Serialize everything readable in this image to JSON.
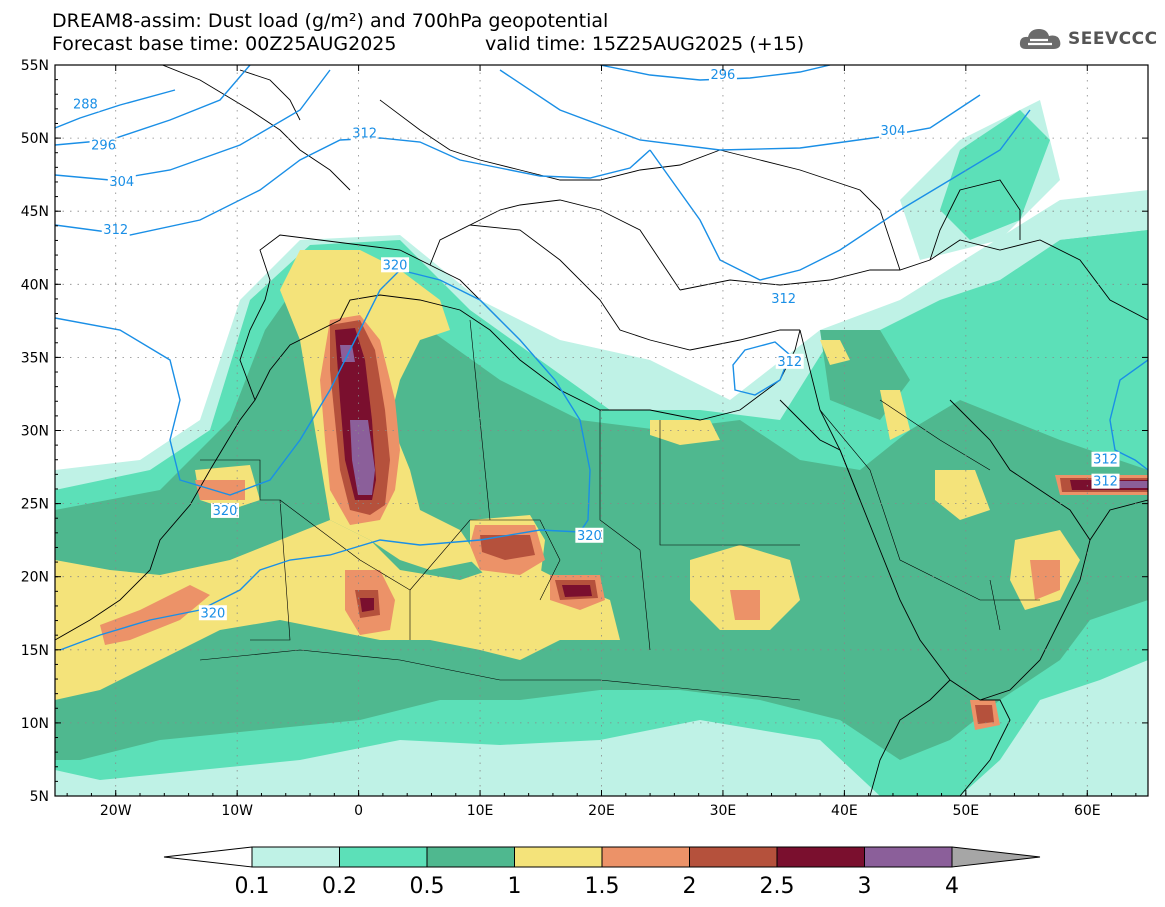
{
  "title_line1": "DREAM8-assim: Dust load (g/m²) and 700hPa geopotential",
  "title_line2": "Forecast base time: 00Z25AUG2025",
  "valid_time": "valid time: 15Z25AUG2025 (+15)",
  "logo": {
    "text": "SEEVCCC",
    "icon": "cloud-icon"
  },
  "map": {
    "lat_ticks": [
      "55N",
      "50N",
      "45N",
      "40N",
      "35N",
      "30N",
      "25N",
      "20N",
      "15N",
      "10N",
      "5N"
    ],
    "lon_ticks": [
      "20W",
      "10W",
      "0",
      "10E",
      "20E",
      "30E",
      "40E",
      "50E",
      "60E"
    ],
    "lat_range": [
      5,
      55
    ],
    "lon_range": [
      -25,
      65
    ],
    "grid": "dotted"
  },
  "contours": {
    "labels": [
      {
        "text": "288",
        "lon": -22.5,
        "lat": 52.3
      },
      {
        "text": "296",
        "lon": -21.0,
        "lat": 49.5
      },
      {
        "text": "304",
        "lon": -19.5,
        "lat": 47.0
      },
      {
        "text": "312",
        "lon": -20.0,
        "lat": 43.7
      },
      {
        "text": "312",
        "lon": 0.5,
        "lat": 50.3
      },
      {
        "text": "296",
        "lon": 30.0,
        "lat": 54.3
      },
      {
        "text": "304",
        "lon": 44.0,
        "lat": 50.5
      },
      {
        "text": "320",
        "lon": 3.0,
        "lat": 41.3
      },
      {
        "text": "312",
        "lon": 35.0,
        "lat": 39.0
      },
      {
        "text": "312",
        "lon": 35.5,
        "lat": 34.7
      },
      {
        "text": "320",
        "lon": -11.0,
        "lat": 24.5
      },
      {
        "text": "320",
        "lon": 19.0,
        "lat": 22.8
      },
      {
        "text": "320",
        "lon": -12.0,
        "lat": 17.5
      },
      {
        "text": "312",
        "lon": 61.5,
        "lat": 28.0
      },
      {
        "text": "312",
        "lon": 61.5,
        "lat": 26.5
      }
    ]
  },
  "colorbar": {
    "labels": [
      "0.1",
      "0.2",
      "0.5",
      "1",
      "1.5",
      "2",
      "2.5",
      "3",
      "4"
    ],
    "colors": [
      "#bff2e6",
      "#5ce0b8",
      "#4fb88f",
      "#f4e37a",
      "#ec9268",
      "#b5513c",
      "#7a0f2e",
      "#8b5f9a"
    ],
    "under_color": "#ffffff",
    "over_color": "#a6a6a6"
  }
}
